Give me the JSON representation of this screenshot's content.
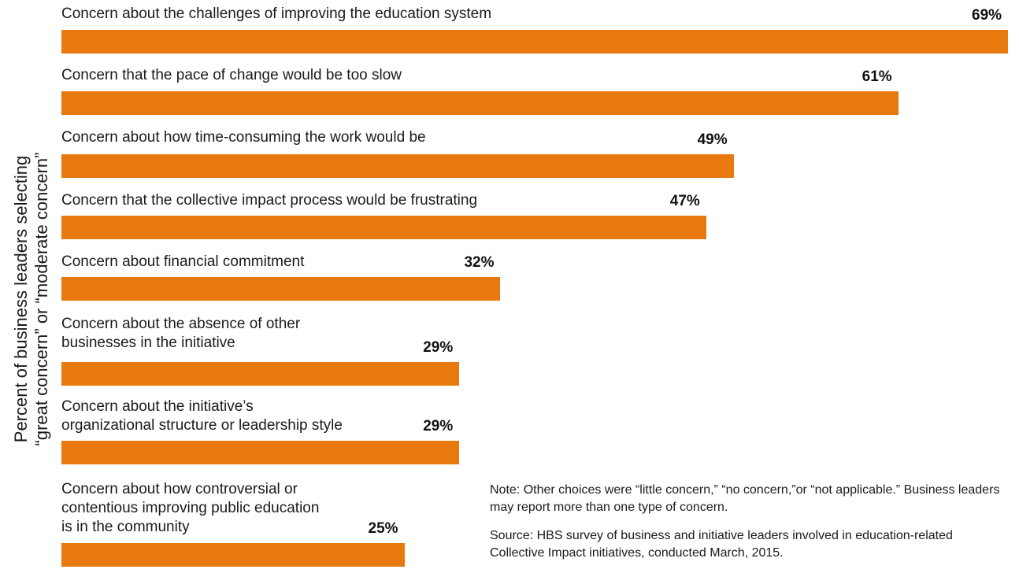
{
  "chart_data": {
    "type": "bar",
    "orientation": "horizontal",
    "ylabel": "Percent of business leaders selecting\n“great concern” or “moderate concern”",
    "categories": [
      "Concern about the challenges of improving the education system",
      "Concern that the pace of change would be too slow",
      "Concern about how time-consuming the work would be",
      "Concern that the collective impact process would be frustrating",
      "Concern about financial commitment",
      "Concern about the absence of other\nbusinesses in the initiative",
      "Concern about the initiative’s\norganizational structure or leadership style",
      "Concern about how controversial or\ncontentious improving public education\nis in the community"
    ],
    "values": [
      69,
      61,
      49,
      47,
      32,
      29,
      29,
      25
    ],
    "value_labels": [
      "69%",
      "61%",
      "49%",
      "47%",
      "32%",
      "29%",
      "29%",
      "25%"
    ],
    "bar_color": "#e8790f",
    "xlim": [
      0,
      69
    ],
    "grid": false,
    "legend": "none"
  },
  "notes": {
    "note": "Note: Other choices were “little concern,” “no concern,”or “not applicable.” Business leaders may report more than one type of concern.",
    "source": "Source: HBS survey of business and initiative leaders involved in education-related Collective Impact initiatives, conducted March, 2015."
  }
}
